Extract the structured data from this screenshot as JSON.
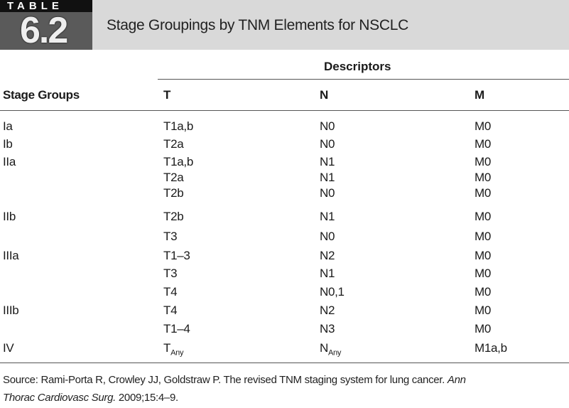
{
  "header": {
    "label": "TABLE",
    "number": "6.2",
    "title": "Stage Groupings by TNM Elements for NSCLC"
  },
  "table": {
    "group_header": "Descriptors",
    "columns": [
      "Stage Groups",
      "T",
      "N",
      "M"
    ],
    "rows": [
      [
        "Ia",
        "T1a,b",
        "N0",
        "M0"
      ],
      [
        "Ib",
        "T2a",
        "N0",
        "M0"
      ],
      [
        "IIa",
        "T1a,b",
        "N1",
        "M0"
      ],
      [
        null,
        "T2a",
        "N1",
        "M0"
      ],
      [
        null,
        "T2b",
        "N0",
        "M0"
      ],
      [
        "IIb",
        "T2b",
        "N1",
        "M0"
      ],
      [
        null,
        "T3",
        "N0",
        "M0"
      ],
      [
        "IIIa",
        "T1–3",
        "N2",
        "M0"
      ],
      [
        null,
        "T3",
        "N1",
        "M0"
      ],
      [
        null,
        "T4",
        "N0,1",
        "M0"
      ],
      [
        "IIIb",
        "T4",
        "N2",
        "M0"
      ],
      [
        null,
        "T1–4",
        "N3",
        "M0"
      ],
      [
        "IV",
        {
          "main": "T",
          "sub": "Any"
        },
        {
          "main": "N",
          "sub": "Any"
        },
        "M1a,b"
      ]
    ]
  },
  "source": {
    "line1": [
      {
        "text": "Source: Rami-Porta R, Crowley JJ, Goldstraw P. The revised TNM staging system for lung cancer. ",
        "italic": false
      },
      {
        "text": "Ann",
        "italic": true
      }
    ],
    "line2": [
      {
        "text": "Thorac Cardiovasc Surg.",
        "italic": true
      },
      {
        "text": " 2009;15:4–9.",
        "italic": false
      }
    ]
  }
}
